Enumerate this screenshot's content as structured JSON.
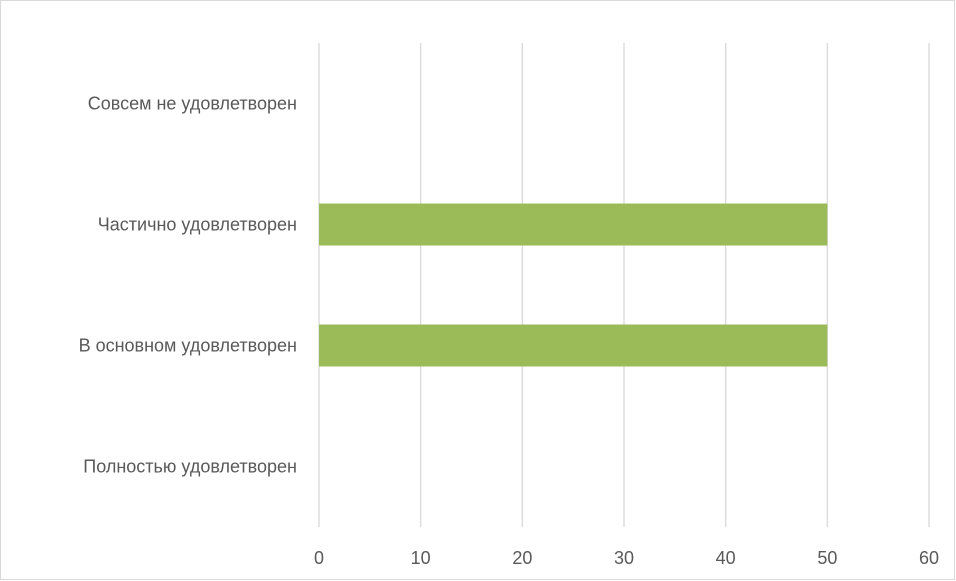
{
  "chart_data": {
    "type": "bar",
    "orientation": "horizontal",
    "categories": [
      "Совсем не удовлетворен",
      "Частично удовлетворен",
      "В основном удовлетворен",
      "Полностью удовлетворен"
    ],
    "values": [
      0,
      50,
      50,
      0
    ],
    "xlim": [
      0,
      60
    ],
    "xticks": [
      0,
      10,
      20,
      30,
      40,
      50,
      60
    ],
    "xtick_labels": [
      "0",
      "10",
      "20",
      "30",
      "40",
      "50",
      "60"
    ],
    "grid": "vertical",
    "bar_color": "#9bbb59",
    "title": "",
    "xlabel": "",
    "ylabel": ""
  }
}
